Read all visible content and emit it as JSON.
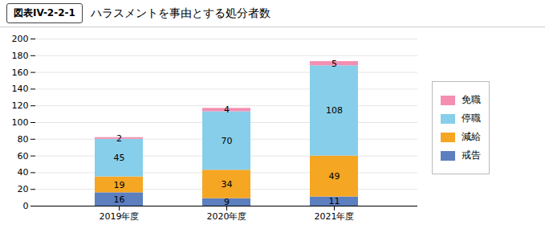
{
  "chart_data": {
    "type": "bar",
    "title": "ハラスメントを事由とする処分者数",
    "subtitle": "図表IV-2-2-1",
    "categories": [
      "2019年度",
      "2020年度",
      "2021年度"
    ],
    "series": [
      {
        "name": "戒告",
        "color": "#5B7FBF",
        "values": [
          16,
          9,
          11
        ]
      },
      {
        "name": "減給",
        "color": "#F5A623",
        "values": [
          19,
          34,
          49
        ]
      },
      {
        "name": "停職",
        "color": "#87CEEB",
        "values": [
          45,
          70,
          108
        ]
      },
      {
        "name": "免職",
        "color": "#F48FB1",
        "values": [
          2,
          4,
          5
        ]
      }
    ],
    "stacked": true,
    "data_labels": true,
    "ylim": [
      0,
      200
    ],
    "yticks": [
      0,
      20,
      40,
      60,
      80,
      100,
      120,
      140,
      160,
      180,
      200
    ],
    "grid": true,
    "legend": "right"
  }
}
